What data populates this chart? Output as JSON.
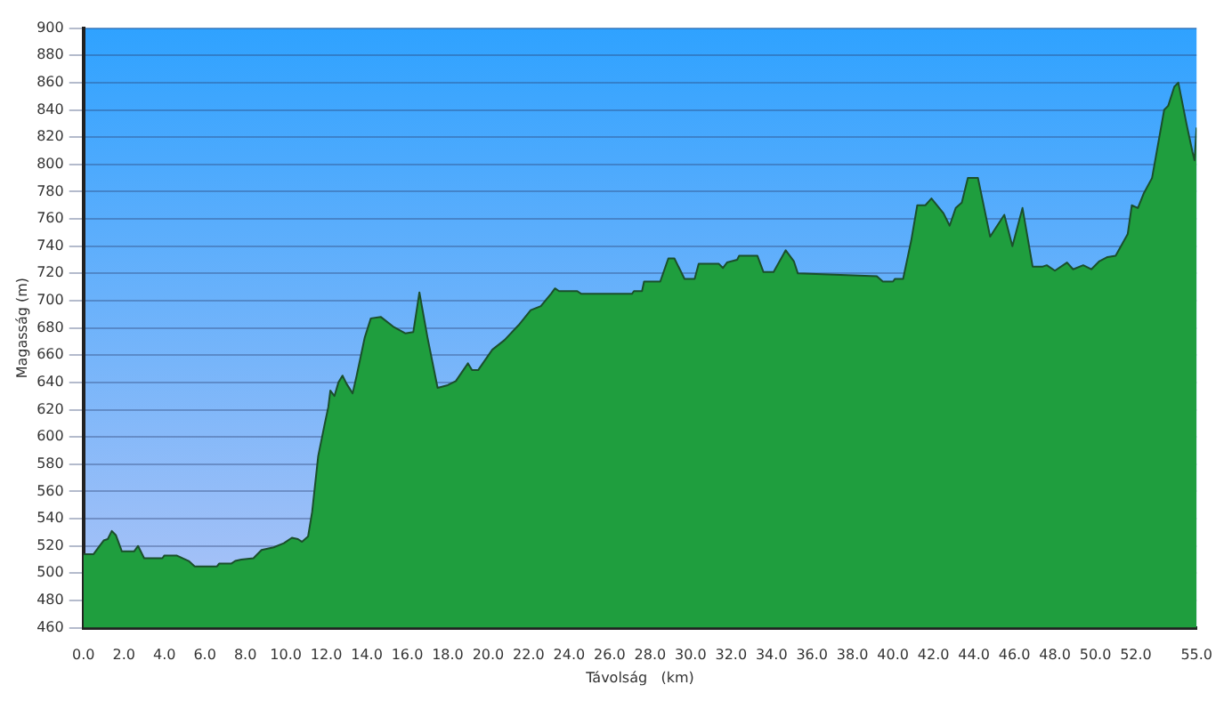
{
  "chart_data": {
    "type": "area",
    "xlabel": "Távolság   (km)",
    "ylabel": "Magasság (m)",
    "xlim": [
      0,
      55
    ],
    "ylim": [
      460,
      900
    ],
    "xticks": [
      {
        "value": 0,
        "label": "0.0"
      },
      {
        "value": 2,
        "label": "2.0"
      },
      {
        "value": 4,
        "label": "4.0"
      },
      {
        "value": 6,
        "label": "6.0"
      },
      {
        "value": 8,
        "label": "8.0"
      },
      {
        "value": 10,
        "label": "10.0"
      },
      {
        "value": 12,
        "label": "12.0"
      },
      {
        "value": 14,
        "label": "14.0"
      },
      {
        "value": 16,
        "label": "16.0"
      },
      {
        "value": 18,
        "label": "18.0"
      },
      {
        "value": 20,
        "label": "20.0"
      },
      {
        "value": 22,
        "label": "22.0"
      },
      {
        "value": 24,
        "label": "24.0"
      },
      {
        "value": 26,
        "label": "26.0"
      },
      {
        "value": 28,
        "label": "28.0"
      },
      {
        "value": 30,
        "label": "30.0"
      },
      {
        "value": 32,
        "label": "32.0"
      },
      {
        "value": 34,
        "label": "34.0"
      },
      {
        "value": 36,
        "label": "36.0"
      },
      {
        "value": 38,
        "label": "38.0"
      },
      {
        "value": 40,
        "label": "40.0"
      },
      {
        "value": 42,
        "label": "42.0"
      },
      {
        "value": 44,
        "label": "44.0"
      },
      {
        "value": 46,
        "label": "46.0"
      },
      {
        "value": 48,
        "label": "48.0"
      },
      {
        "value": 50,
        "label": "50.0"
      },
      {
        "value": 52,
        "label": "52.0"
      },
      {
        "value": 55,
        "label": "55.0"
      }
    ],
    "yticks": [
      460,
      480,
      500,
      520,
      540,
      560,
      580,
      600,
      620,
      640,
      660,
      680,
      700,
      720,
      740,
      760,
      780,
      800,
      820,
      840,
      860,
      880,
      900
    ],
    "grid": "y",
    "legend": false,
    "marker": "none",
    "series": [
      {
        "color": "#1f9e3e",
        "x": [
          0,
          0.5,
          0.8,
          1.0,
          1.2,
          1.4,
          1.6,
          1.9,
          2.5,
          2.7,
          3.0,
          3.9,
          4.0,
          4.6,
          5.2,
          5.5,
          6.6,
          6.7,
          7.3,
          7.5,
          7.8,
          8.4,
          8.8,
          9.4,
          9.9,
          10.3,
          10.6,
          10.8,
          11.1,
          11.3,
          11.6,
          11.9,
          12.1,
          12.2,
          12.4,
          12.6,
          12.8,
          13.0,
          13.3,
          13.5,
          13.9,
          14.2,
          14.7,
          15.3,
          15.9,
          16.3,
          16.6,
          17.0,
          17.5,
          18.0,
          18.4,
          19.0,
          19.2,
          19.5,
          20.2,
          20.8,
          21.5,
          22.1,
          22.6,
          23.1,
          23.3,
          23.5,
          24.4,
          24.6,
          27.1,
          27.2,
          27.6,
          27.7,
          28.5,
          28.9,
          29.2,
          29.7,
          30.2,
          30.4,
          31.4,
          31.6,
          31.8,
          32.3,
          32.4,
          33.3,
          33.6,
          34.1,
          34.7,
          35.1,
          35.3,
          39.2,
          39.5,
          40.0,
          40.1,
          40.5,
          40.9,
          41.2,
          41.6,
          41.9,
          42.5,
          42.8,
          43.1,
          43.4,
          43.7,
          44.2,
          44.8,
          45.5,
          45.9,
          46.4,
          46.9,
          47.4,
          47.6,
          48.0,
          48.6,
          48.9,
          49.4,
          49.8,
          50.2,
          50.6,
          51.0,
          51.6,
          51.8,
          52.1,
          52.4,
          52.8,
          53.4,
          53.6,
          53.9,
          54.1,
          54.5,
          54.8,
          54.9,
          55.0
        ],
        "values": [
          514,
          514,
          520,
          524,
          525,
          531,
          528,
          516,
          516,
          520,
          511,
          511,
          513,
          513,
          509,
          505,
          505,
          507,
          507,
          509,
          510,
          511,
          517,
          519,
          522,
          526,
          525,
          523,
          527,
          545,
          586,
          608,
          622,
          634,
          630,
          640,
          645,
          639,
          632,
          645,
          673,
          687,
          688,
          681,
          676,
          677,
          706,
          673,
          636,
          638,
          641,
          654,
          649,
          649,
          664,
          671,
          682,
          693,
          696,
          705,
          709,
          707,
          707,
          705,
          705,
          707,
          707,
          714,
          714,
          731,
          731,
          716,
          716,
          727,
          727,
          724,
          728,
          730,
          733,
          733,
          721,
          721,
          737,
          729,
          720,
          718,
          714,
          714,
          716,
          716,
          744,
          770,
          770,
          775,
          764,
          755,
          768,
          772,
          790,
          790,
          747,
          763,
          740,
          768,
          725,
          725,
          726,
          722,
          728,
          723,
          726,
          723,
          729,
          732,
          733,
          749,
          770,
          768,
          779,
          790,
          840,
          843,
          857,
          860,
          830,
          809,
          803,
          827
        ]
      }
    ]
  }
}
